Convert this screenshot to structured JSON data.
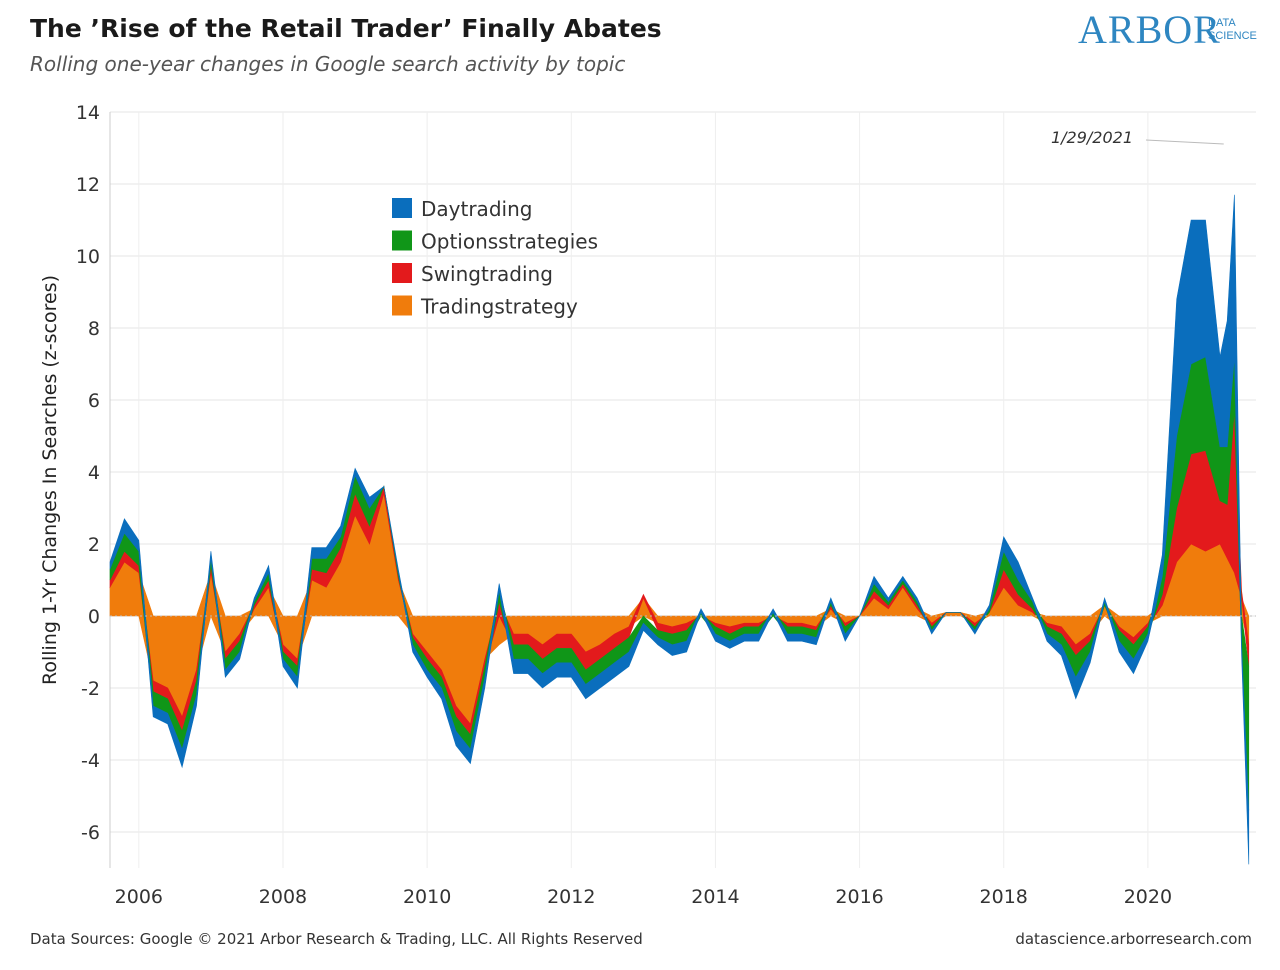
{
  "header": {
    "title": "The ’Rise of the Retail Trader’ Finally Abates",
    "subtitle": "Rolling one-year changes in Google search activity by topic"
  },
  "logo": {
    "word": "ARBOR",
    "line1": "DATA",
    "line2": "SCIENCE",
    "color": "#2e86c1"
  },
  "footer": {
    "left": "Data Sources: Google © 2021 Arbor Research & Trading, LLC. All Rights Reserved",
    "right": "datascience.arborresearch.com"
  },
  "chart_data": {
    "type": "area",
    "ylabel": "Rolling 1-Yr Changes In Searches (z-scores)",
    "xlim": [
      2005.6,
      2021.5
    ],
    "ylim": [
      -7,
      14
    ],
    "xticks": [
      2006,
      2008,
      2010,
      2012,
      2014,
      2016,
      2018,
      2020
    ],
    "yticks": [
      -6,
      -4,
      -2,
      0,
      2,
      4,
      6,
      8,
      10,
      12,
      14
    ],
    "grid": true,
    "legend_position": "top-left-center",
    "annotation": {
      "text": "1/29/2021",
      "x": 2021.08,
      "y": 13.0
    },
    "x": [
      2005.6,
      2005.8,
      2006.0,
      2006.2,
      2006.4,
      2006.6,
      2006.8,
      2007.0,
      2007.2,
      2007.4,
      2007.6,
      2007.8,
      2008.0,
      2008.2,
      2008.4,
      2008.6,
      2008.8,
      2009.0,
      2009.2,
      2009.4,
      2009.6,
      2009.8,
      2010.0,
      2010.2,
      2010.4,
      2010.6,
      2010.8,
      2011.0,
      2011.2,
      2011.4,
      2011.6,
      2011.8,
      2012.0,
      2012.2,
      2012.4,
      2012.6,
      2012.8,
      2013.0,
      2013.2,
      2013.4,
      2013.6,
      2013.8,
      2014.0,
      2014.2,
      2014.4,
      2014.6,
      2014.8,
      2015.0,
      2015.2,
      2015.4,
      2015.6,
      2015.8,
      2016.0,
      2016.2,
      2016.4,
      2016.6,
      2016.8,
      2017.0,
      2017.2,
      2017.4,
      2017.6,
      2017.8,
      2018.0,
      2018.2,
      2018.4,
      2018.6,
      2018.8,
      2019.0,
      2019.2,
      2019.4,
      2019.6,
      2019.8,
      2020.0,
      2020.2,
      2020.4,
      2020.6,
      2020.8,
      2021.0,
      2021.1,
      2021.2,
      2021.3,
      2021.4
    ],
    "series": [
      {
        "name": "Tradingstrategy",
        "color": "#f07c0c",
        "values": [
          0.8,
          1.5,
          1.2,
          -1.8,
          -2.0,
          -2.8,
          -1.5,
          1.2,
          -1.0,
          -0.5,
          0.2,
          0.8,
          -0.8,
          -1.2,
          1.0,
          0.8,
          1.5,
          2.8,
          2.0,
          3.4,
          1.0,
          -0.5,
          -1.0,
          -1.5,
          -2.5,
          -3.0,
          -1.2,
          -0.8,
          -0.5,
          -0.5,
          -0.8,
          -0.5,
          -0.5,
          -1.0,
          -0.8,
          -0.5,
          -0.3,
          0.5,
          -0.2,
          -0.3,
          -0.2,
          0.0,
          -0.2,
          -0.3,
          -0.2,
          -0.2,
          0.0,
          -0.2,
          -0.2,
          -0.3,
          0.2,
          -0.2,
          0.0,
          0.5,
          0.2,
          0.8,
          0.2,
          -0.2,
          0.1,
          0.1,
          -0.2,
          0.1,
          0.8,
          0.3,
          0.1,
          -0.2,
          -0.3,
          -0.8,
          -0.5,
          0.3,
          -0.3,
          -0.6,
          -0.2,
          0.3,
          1.5,
          2.0,
          1.8,
          2.0,
          1.6,
          1.2,
          0.5,
          -0.8
        ]
      },
      {
        "name": "Swingtrading",
        "color": "#e31a1c",
        "values": [
          0.2,
          0.3,
          0.2,
          -0.3,
          -0.3,
          -0.4,
          -0.3,
          0.2,
          -0.2,
          -0.2,
          0.1,
          0.2,
          -0.2,
          -0.2,
          0.3,
          0.4,
          0.4,
          0.6,
          0.5,
          0.2,
          0.1,
          -0.1,
          -0.2,
          -0.2,
          -0.3,
          -0.3,
          -0.2,
          0.4,
          -0.3,
          -0.3,
          -0.4,
          -0.4,
          -0.4,
          -0.5,
          -0.4,
          -0.4,
          -0.3,
          0.1,
          -0.2,
          -0.2,
          -0.2,
          0.0,
          -0.1,
          -0.2,
          -0.1,
          -0.1,
          0.0,
          -0.1,
          -0.1,
          -0.1,
          0.1,
          -0.1,
          0.0,
          0.2,
          0.1,
          0.1,
          0.1,
          -0.1,
          0.0,
          0.0,
          -0.1,
          0.0,
          0.5,
          0.3,
          0.1,
          -0.1,
          -0.2,
          -0.3,
          -0.2,
          0.0,
          -0.1,
          -0.2,
          -0.1,
          0.3,
          1.5,
          2.5,
          2.8,
          1.2,
          1.5,
          4.5,
          0.2,
          -0.6
        ]
      },
      {
        "name": "Optionsstrategies",
        "color": "#109618",
        "values": [
          0.3,
          0.5,
          0.4,
          -0.4,
          -0.4,
          -0.5,
          -0.4,
          0.2,
          -0.3,
          -0.3,
          0.1,
          0.2,
          -0.2,
          -0.3,
          0.3,
          0.4,
          0.3,
          0.5,
          0.5,
          0.0,
          0.1,
          -0.2,
          -0.3,
          -0.3,
          -0.4,
          -0.4,
          -0.3,
          0.3,
          -0.4,
          -0.4,
          -0.4,
          -0.4,
          -0.4,
          -0.4,
          -0.4,
          -0.4,
          -0.4,
          -0.2,
          -0.2,
          -0.3,
          -0.3,
          0.1,
          -0.2,
          -0.2,
          -0.2,
          -0.2,
          0.1,
          -0.2,
          -0.2,
          -0.2,
          0.1,
          -0.2,
          0.0,
          0.2,
          0.1,
          0.1,
          0.1,
          -0.1,
          0.0,
          0.0,
          -0.1,
          0.1,
          0.5,
          0.4,
          0.2,
          -0.2,
          -0.3,
          -0.6,
          -0.3,
          0.1,
          -0.3,
          -0.4,
          -0.2,
          0.5,
          2.0,
          2.5,
          2.6,
          1.5,
          1.6,
          1.5,
          -0.8,
          -4.0
        ]
      },
      {
        "name": "Daytrading",
        "color": "#0a6ebd",
        "values": [
          0.2,
          0.4,
          0.3,
          -0.3,
          -0.3,
          -0.5,
          -0.3,
          0.2,
          -0.2,
          -0.2,
          0.1,
          0.2,
          -0.2,
          -0.3,
          0.3,
          0.3,
          0.3,
          0.2,
          0.3,
          0.0,
          0.1,
          -0.2,
          -0.2,
          -0.3,
          -0.4,
          -0.4,
          -0.3,
          0.2,
          -0.4,
          -0.4,
          -0.4,
          -0.4,
          -0.4,
          -0.4,
          -0.4,
          -0.4,
          -0.4,
          -0.2,
          -0.2,
          -0.3,
          -0.3,
          0.1,
          -0.2,
          -0.2,
          -0.2,
          -0.2,
          0.1,
          -0.2,
          -0.2,
          -0.2,
          0.1,
          -0.2,
          0.0,
          0.2,
          0.1,
          0.1,
          0.1,
          -0.1,
          0.0,
          0.0,
          -0.1,
          0.1,
          0.4,
          0.5,
          0.1,
          -0.2,
          -0.3,
          -0.6,
          -0.3,
          0.1,
          -0.3,
          -0.4,
          -0.2,
          0.6,
          3.8,
          4.0,
          3.8,
          2.5,
          3.5,
          4.5,
          -0.3,
          -1.5
        ]
      }
    ]
  }
}
